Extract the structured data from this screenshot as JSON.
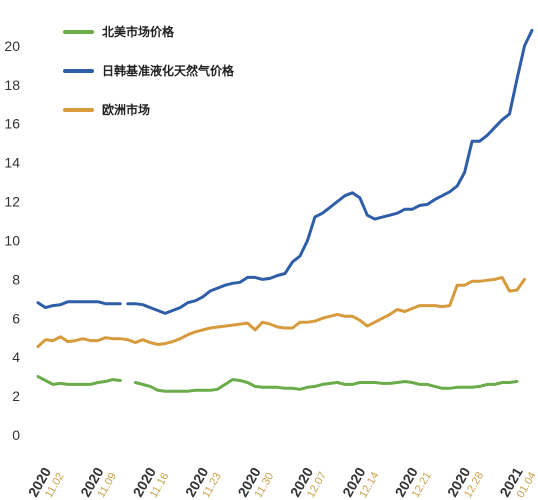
{
  "chart_data": {
    "type": "line",
    "ylim": [
      0,
      22
    ],
    "yticks": [
      0,
      2,
      4,
      6,
      8,
      10,
      12,
      14,
      16,
      18,
      20
    ],
    "xticks": [
      {
        "year": "2020",
        "date": "11.02",
        "x": 0
      },
      {
        "year": "2020",
        "date": "11.09",
        "x": 7
      },
      {
        "year": "2020",
        "date": "11.16",
        "x": 14
      },
      {
        "year": "2020",
        "date": "11.23",
        "x": 21
      },
      {
        "year": "2020",
        "date": "11.30",
        "x": 28
      },
      {
        "year": "2020",
        "date": "12.07",
        "x": 35
      },
      {
        "year": "2020",
        "date": "12.14",
        "x": 42
      },
      {
        "year": "2020",
        "date": "12.21",
        "x": 49
      },
      {
        "year": "2020",
        "date": "12.28",
        "x": 56
      },
      {
        "year": "2021",
        "date": "01.04",
        "x": 63
      }
    ],
    "legend_position": "top-left",
    "series": [
      {
        "name": "北美市场价格",
        "color": "#6aab4a",
        "segments": [
          [
            [
              0,
              3.0
            ],
            [
              1,
              2.8
            ],
            [
              2,
              2.6
            ],
            [
              3,
              2.65
            ],
            [
              4,
              2.6
            ],
            [
              5,
              2.6
            ],
            [
              6,
              2.6
            ],
            [
              7,
              2.6
            ],
            [
              8,
              2.7
            ],
            [
              9,
              2.75
            ],
            [
              10,
              2.85
            ],
            [
              11,
              2.8
            ]
          ],
          [
            [
              13,
              2.7
            ],
            [
              14,
              2.6
            ],
            [
              15,
              2.5
            ],
            [
              16,
              2.3
            ],
            [
              17,
              2.25
            ],
            [
              18,
              2.25
            ],
            [
              19,
              2.25
            ],
            [
              20,
              2.25
            ],
            [
              21,
              2.3
            ],
            [
              22,
              2.3
            ],
            [
              23,
              2.3
            ],
            [
              24,
              2.35
            ],
            [
              25,
              2.6
            ],
            [
              26,
              2.85
            ],
            [
              27,
              2.8
            ],
            [
              28,
              2.7
            ],
            [
              29,
              2.5
            ],
            [
              30,
              2.45
            ],
            [
              31,
              2.45
            ],
            [
              32,
              2.45
            ],
            [
              33,
              2.4
            ],
            [
              34,
              2.4
            ],
            [
              35,
              2.35
            ],
            [
              36,
              2.45
            ],
            [
              37,
              2.5
            ],
            [
              38,
              2.6
            ],
            [
              39,
              2.65
            ],
            [
              40,
              2.7
            ],
            [
              41,
              2.6
            ],
            [
              42,
              2.6
            ],
            [
              43,
              2.7
            ],
            [
              44,
              2.7
            ],
            [
              45,
              2.7
            ],
            [
              46,
              2.65
            ],
            [
              47,
              2.65
            ],
            [
              48,
              2.7
            ],
            [
              49,
              2.75
            ],
            [
              50,
              2.7
            ],
            [
              51,
              2.6
            ],
            [
              52,
              2.6
            ],
            [
              53,
              2.5
            ],
            [
              54,
              2.4
            ],
            [
              55,
              2.4
            ],
            [
              56,
              2.45
            ],
            [
              57,
              2.45
            ],
            [
              58,
              2.45
            ],
            [
              59,
              2.5
            ],
            [
              60,
              2.6
            ],
            [
              61,
              2.6
            ],
            [
              62,
              2.7
            ],
            [
              63,
              2.7
            ],
            [
              64,
              2.75
            ]
          ]
        ]
      },
      {
        "name": "日韩基准液化天然气价格",
        "color": "#2f5ea8",
        "segments": [
          [
            [
              0,
              6.8
            ],
            [
              1,
              6.55
            ],
            [
              2,
              6.65
            ],
            [
              3,
              6.7
            ],
            [
              4,
              6.85
            ],
            [
              5,
              6.85
            ],
            [
              6,
              6.85
            ],
            [
              7,
              6.85
            ],
            [
              8,
              6.85
            ],
            [
              9,
              6.75
            ],
            [
              10,
              6.75
            ],
            [
              11,
              6.75
            ]
          ],
          [
            [
              12,
              6.75
            ],
            [
              13,
              6.75
            ],
            [
              14,
              6.7
            ],
            [
              15,
              6.55
            ],
            [
              16,
              6.4
            ],
            [
              17,
              6.25
            ],
            [
              18,
              6.4
            ],
            [
              19,
              6.55
            ],
            [
              20,
              6.8
            ],
            [
              21,
              6.9
            ],
            [
              22,
              7.1
            ],
            [
              23,
              7.4
            ],
            [
              24,
              7.55
            ],
            [
              25,
              7.7
            ],
            [
              26,
              7.8
            ],
            [
              27,
              7.85
            ],
            [
              28,
              8.1
            ],
            [
              29,
              8.1
            ],
            [
              30,
              8.0
            ],
            [
              31,
              8.05
            ],
            [
              32,
              8.2
            ],
            [
              33,
              8.3
            ],
            [
              34,
              8.9
            ],
            [
              35,
              9.2
            ],
            [
              36,
              10.0
            ],
            [
              37,
              11.2
            ],
            [
              38,
              11.4
            ],
            [
              39,
              11.7
            ],
            [
              40,
              12.0
            ],
            [
              41,
              12.3
            ],
            [
              42,
              12.45
            ],
            [
              43,
              12.2
            ],
            [
              44,
              11.3
            ],
            [
              45,
              11.1
            ],
            [
              46,
              11.2
            ],
            [
              47,
              11.3
            ],
            [
              48,
              11.4
            ],
            [
              49,
              11.6
            ],
            [
              50,
              11.6
            ],
            [
              51,
              11.8
            ],
            [
              52,
              11.85
            ],
            [
              53,
              12.1
            ],
            [
              54,
              12.3
            ],
            [
              55,
              12.5
            ],
            [
              56,
              12.8
            ],
            [
              57,
              13.5
            ],
            [
              58,
              15.1
            ],
            [
              59,
              15.1
            ],
            [
              60,
              15.4
            ],
            [
              61,
              15.8
            ],
            [
              62,
              16.2
            ],
            [
              63,
              16.5
            ],
            [
              64,
              18.3
            ],
            [
              65,
              20.0
            ],
            [
              66,
              20.8
            ]
          ]
        ]
      },
      {
        "name": "欧洲市场",
        "color": "#d79a3c",
        "segments": [
          [
            [
              0,
              4.55
            ],
            [
              1,
              4.9
            ],
            [
              2,
              4.85
            ],
            [
              3,
              5.05
            ],
            [
              4,
              4.8
            ],
            [
              5,
              4.85
            ],
            [
              6,
              4.95
            ],
            [
              7,
              4.85
            ],
            [
              8,
              4.85
            ],
            [
              9,
              5.0
            ],
            [
              10,
              4.95
            ],
            [
              11,
              4.95
            ],
            [
              12,
              4.9
            ],
            [
              13,
              4.75
            ],
            [
              14,
              4.9
            ],
            [
              15,
              4.75
            ],
            [
              16,
              4.65
            ],
            [
              17,
              4.7
            ],
            [
              18,
              4.8
            ],
            [
              19,
              4.95
            ],
            [
              20,
              5.15
            ],
            [
              21,
              5.3
            ],
            [
              22,
              5.4
            ],
            [
              23,
              5.5
            ],
            [
              24,
              5.55
            ],
            [
              25,
              5.6
            ],
            [
              26,
              5.65
            ],
            [
              27,
              5.7
            ],
            [
              28,
              5.75
            ],
            [
              29,
              5.4
            ],
            [
              30,
              5.8
            ],
            [
              31,
              5.7
            ],
            [
              32,
              5.55
            ],
            [
              33,
              5.5
            ],
            [
              34,
              5.5
            ],
            [
              35,
              5.8
            ],
            [
              36,
              5.8
            ],
            [
              37,
              5.85
            ],
            [
              38,
              6.0
            ],
            [
              39,
              6.1
            ],
            [
              40,
              6.2
            ],
            [
              41,
              6.1
            ],
            [
              42,
              6.1
            ],
            [
              43,
              5.9
            ],
            [
              44,
              5.6
            ],
            [
              45,
              5.8
            ],
            [
              46,
              6.0
            ],
            [
              47,
              6.2
            ],
            [
              48,
              6.45
            ],
            [
              49,
              6.35
            ],
            [
              50,
              6.5
            ],
            [
              51,
              6.65
            ],
            [
              52,
              6.65
            ],
            [
              53,
              6.65
            ],
            [
              54,
              6.6
            ],
            [
              55,
              6.65
            ],
            [
              56,
              7.7
            ],
            [
              57,
              7.7
            ],
            [
              58,
              7.9
            ],
            [
              59,
              7.9
            ],
            [
              60,
              7.95
            ],
            [
              61,
              8.0
            ],
            [
              62,
              8.1
            ],
            [
              63,
              7.4
            ],
            [
              64,
              7.45
            ],
            [
              65,
              8.0
            ]
          ]
        ]
      }
    ]
  }
}
